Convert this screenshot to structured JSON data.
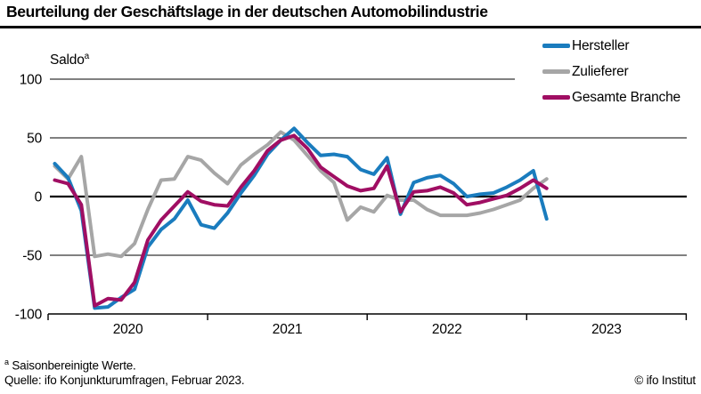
{
  "title": "Beurteilung der Geschäftslage in der deutschen Automobilindustrie",
  "y_axis": {
    "label": "Saldo",
    "label_superscript": "a"
  },
  "footnote": {
    "marker": "a",
    "text": "Saisonbereinigte Werte."
  },
  "source": "Quelle: ifo Konjunkturumfragen, Februar 2023.",
  "copyright": "© ifo Institut",
  "chart_data": {
    "type": "line",
    "frequency": "monthly",
    "x_start": "2020-01",
    "x_end": "2023-02",
    "x_tick_labels": [
      "2020",
      "2021",
      "2022",
      "2023"
    ],
    "y_ticks": [
      100,
      50,
      0,
      -50,
      -100
    ],
    "ylim": [
      -100,
      100
    ],
    "grid": "horizontal",
    "legend_position": "top-right",
    "series": [
      {
        "name": "Hersteller",
        "color": "#1a7cbe",
        "values": [
          28,
          16,
          -12,
          -95,
          -94,
          -86,
          -79,
          -43,
          -28,
          -19,
          -3,
          -24,
          -27,
          -14,
          3,
          18,
          36,
          48,
          58,
          46,
          35,
          36,
          34,
          23,
          19,
          33,
          -15,
          12,
          16,
          18,
          11,
          0,
          2,
          3,
          8,
          14,
          22,
          -19
        ]
      },
      {
        "name": "Zulieferer",
        "color": "#a6a6a6",
        "values": [
          26,
          15,
          34,
          -51,
          -49,
          -51,
          -40,
          -11,
          14,
          15,
          34,
          31,
          20,
          11,
          27,
          36,
          44,
          55,
          48,
          35,
          22,
          12,
          -20,
          -9,
          -13,
          1,
          -3,
          -3,
          -11,
          -16,
          -16,
          -16,
          -14,
          -11,
          -7,
          -3,
          7,
          15
        ]
      },
      {
        "name": "Gesamte Branche",
        "color": "#a00e63",
        "values": [
          14,
          11,
          -7,
          -93,
          -87,
          -88,
          -73,
          -37,
          -20,
          -8,
          4,
          -4,
          -7,
          -8,
          8,
          22,
          39,
          48,
          52,
          41,
          25,
          17,
          9,
          5,
          7,
          26,
          -13,
          4,
          5,
          8,
          3,
          -7,
          -5,
          -2,
          1,
          7,
          14,
          7
        ]
      }
    ]
  }
}
